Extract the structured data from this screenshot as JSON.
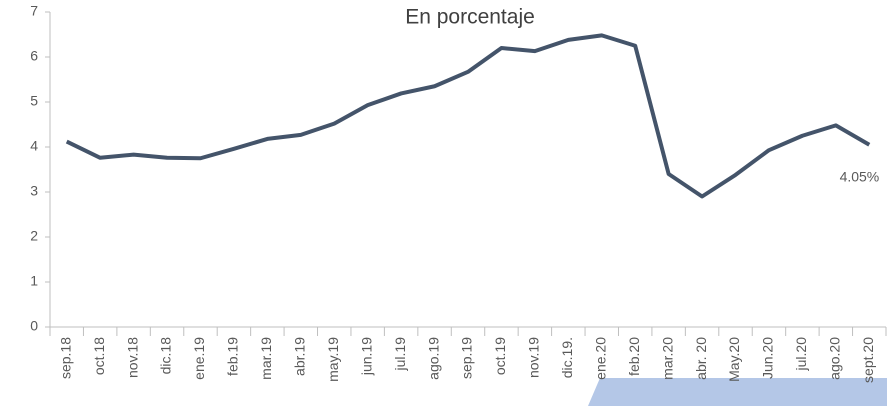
{
  "chart_data": {
    "type": "line",
    "title": "En porcentaje",
    "categories": [
      "sep.18",
      "oct.18",
      "nov.18",
      "dic.18",
      "ene.19",
      "feb.19",
      "mar.19",
      "abr.19",
      "may.19",
      "jun.19",
      "jul.19",
      "ago.19",
      "sep.19",
      "oct.19",
      "nov.19",
      "dic.19.",
      "ene.20",
      "feb.20",
      "mar.20",
      "abr. 20",
      "May.20",
      "Jun.20",
      "jul.20",
      "ago.20",
      "sept.20"
    ],
    "values": [
      4.12,
      3.76,
      3.83,
      3.76,
      3.75,
      3.96,
      4.18,
      4.27,
      4.52,
      4.93,
      5.19,
      5.35,
      5.67,
      6.2,
      6.13,
      6.38,
      6.48,
      6.25,
      3.4,
      2.9,
      3.38,
      3.93,
      4.25,
      4.48,
      4.05
    ],
    "value_labels": [
      null,
      null,
      null,
      null,
      null,
      null,
      null,
      null,
      null,
      null,
      null,
      null,
      null,
      null,
      null,
      null,
      null,
      null,
      null,
      null,
      null,
      null,
      null,
      null,
      "4.05%"
    ],
    "color": "#44546a",
    "ylim": [
      0,
      7
    ],
    "yticks": [
      0,
      1,
      2,
      3,
      4,
      5,
      6,
      7
    ]
  }
}
